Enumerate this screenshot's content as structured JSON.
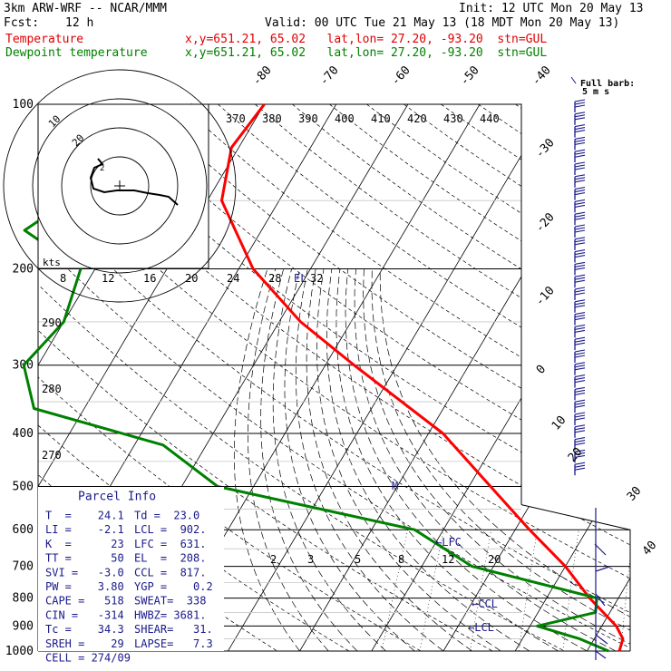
{
  "header": {
    "model": "3km ARW-WRF -- NCAR/MMM",
    "init": "Init: 12 UTC Mon 20 May 13",
    "fcst_label": "Fcst:",
    "fcst_value": "12 h",
    "valid": "Valid: 00 UTC Tue 21 May 13 (18 MDT Mon 20 May 13)",
    "legend_temp": "Temperature",
    "legend_dew": "Dewpoint temperature",
    "coords_temp": "x,y=651.21, 65.02   lat,lon= 27.20, -93.20  stn=GUL",
    "coords_dew": "x,y=651.21, 65.02   lat,lon= 27.20, -93.20  stn=GUL",
    "barb_label": "Full barb:",
    "barb_unit": "5 m s",
    "kts": "kts"
  },
  "colors": {
    "temperature": "#ff0000",
    "dewpoint": "#008000",
    "navy": "#1a1a8c"
  },
  "chart_data": {
    "type": "line",
    "subtype": "skew-t log-p",
    "pressure_ticks": [
      "100",
      "200",
      "300",
      "400",
      "500",
      "600",
      "700",
      "800",
      "900",
      "1000"
    ],
    "isotherm_labels": [
      "-80",
      "-70",
      "-60",
      "-50",
      "-40",
      "-30",
      "-20",
      "-10",
      "0",
      "10",
      "20",
      "30",
      "40"
    ],
    "theta_labels": [
      "370",
      "380",
      "390",
      "400",
      "410",
      "420",
      "430",
      "440"
    ],
    "thetaw_labels": [
      "290",
      "280",
      "270"
    ],
    "mixing_ratio_labels": [
      "2",
      "3",
      "5",
      "8",
      "12",
      "20"
    ],
    "hodograph_ring_labels": [
      "8",
      "12",
      "16",
      "20",
      "24",
      "28",
      "32"
    ],
    "hodograph_speed_labels": [
      "10",
      "20"
    ],
    "series": [
      {
        "name": "Temperature",
        "points": [
          [
            100,
            -70
          ],
          [
            120,
            -71
          ],
          [
            150,
            -68
          ],
          [
            200,
            -58
          ],
          [
            250,
            -47
          ],
          [
            300,
            -36
          ],
          [
            400,
            -18
          ],
          [
            500,
            -7
          ],
          [
            600,
            2
          ],
          [
            700,
            10
          ],
          [
            800,
            16
          ],
          [
            900,
            22
          ],
          [
            950,
            24
          ],
          [
            1000,
            24.5
          ]
        ]
      },
      {
        "name": "Dewpoint temperature",
        "points": [
          [
            100,
            -80
          ],
          [
            130,
            -85
          ],
          [
            170,
            -93
          ],
          [
            200,
            -82
          ],
          [
            250,
            -80
          ],
          [
            300,
            -82
          ],
          [
            360,
            -77
          ],
          [
            420,
            -56
          ],
          [
            500,
            -45
          ],
          [
            600,
            -14
          ],
          [
            700,
            -3
          ],
          [
            800,
            17
          ],
          [
            850,
            18
          ],
          [
            900,
            11
          ],
          [
            950,
            18
          ],
          [
            1000,
            23
          ]
        ]
      }
    ],
    "annotations": {
      "el": "EL",
      "lfc": "LFC",
      "ccl": "CCL",
      "lcl": "LCL"
    }
  },
  "parcel_info": {
    "title": "Parcel Info",
    "rows": [
      [
        "T  =    24.1",
        "Td =  23.0"
      ],
      [
        "LI =    -2.1",
        "LCL =  902."
      ],
      [
        "K  =      23",
        "LFC =  631."
      ],
      [
        "TT =      50",
        "EL  =  208."
      ],
      [
        "SVI =   -3.0",
        "CCL =  817."
      ],
      [
        "PW =    3.80",
        "YGP =    0.2"
      ],
      [
        "CAPE =   518",
        "SWEAT=  338"
      ],
      [
        "CIN =   -314",
        "HWBZ= 3681."
      ],
      [
        "Tc =    34.3",
        "SHEAR=   31."
      ],
      [
        "SREH =    29",
        "LAPSE=   7.3"
      ],
      [
        "CELL = 274/09",
        ""
      ]
    ]
  }
}
